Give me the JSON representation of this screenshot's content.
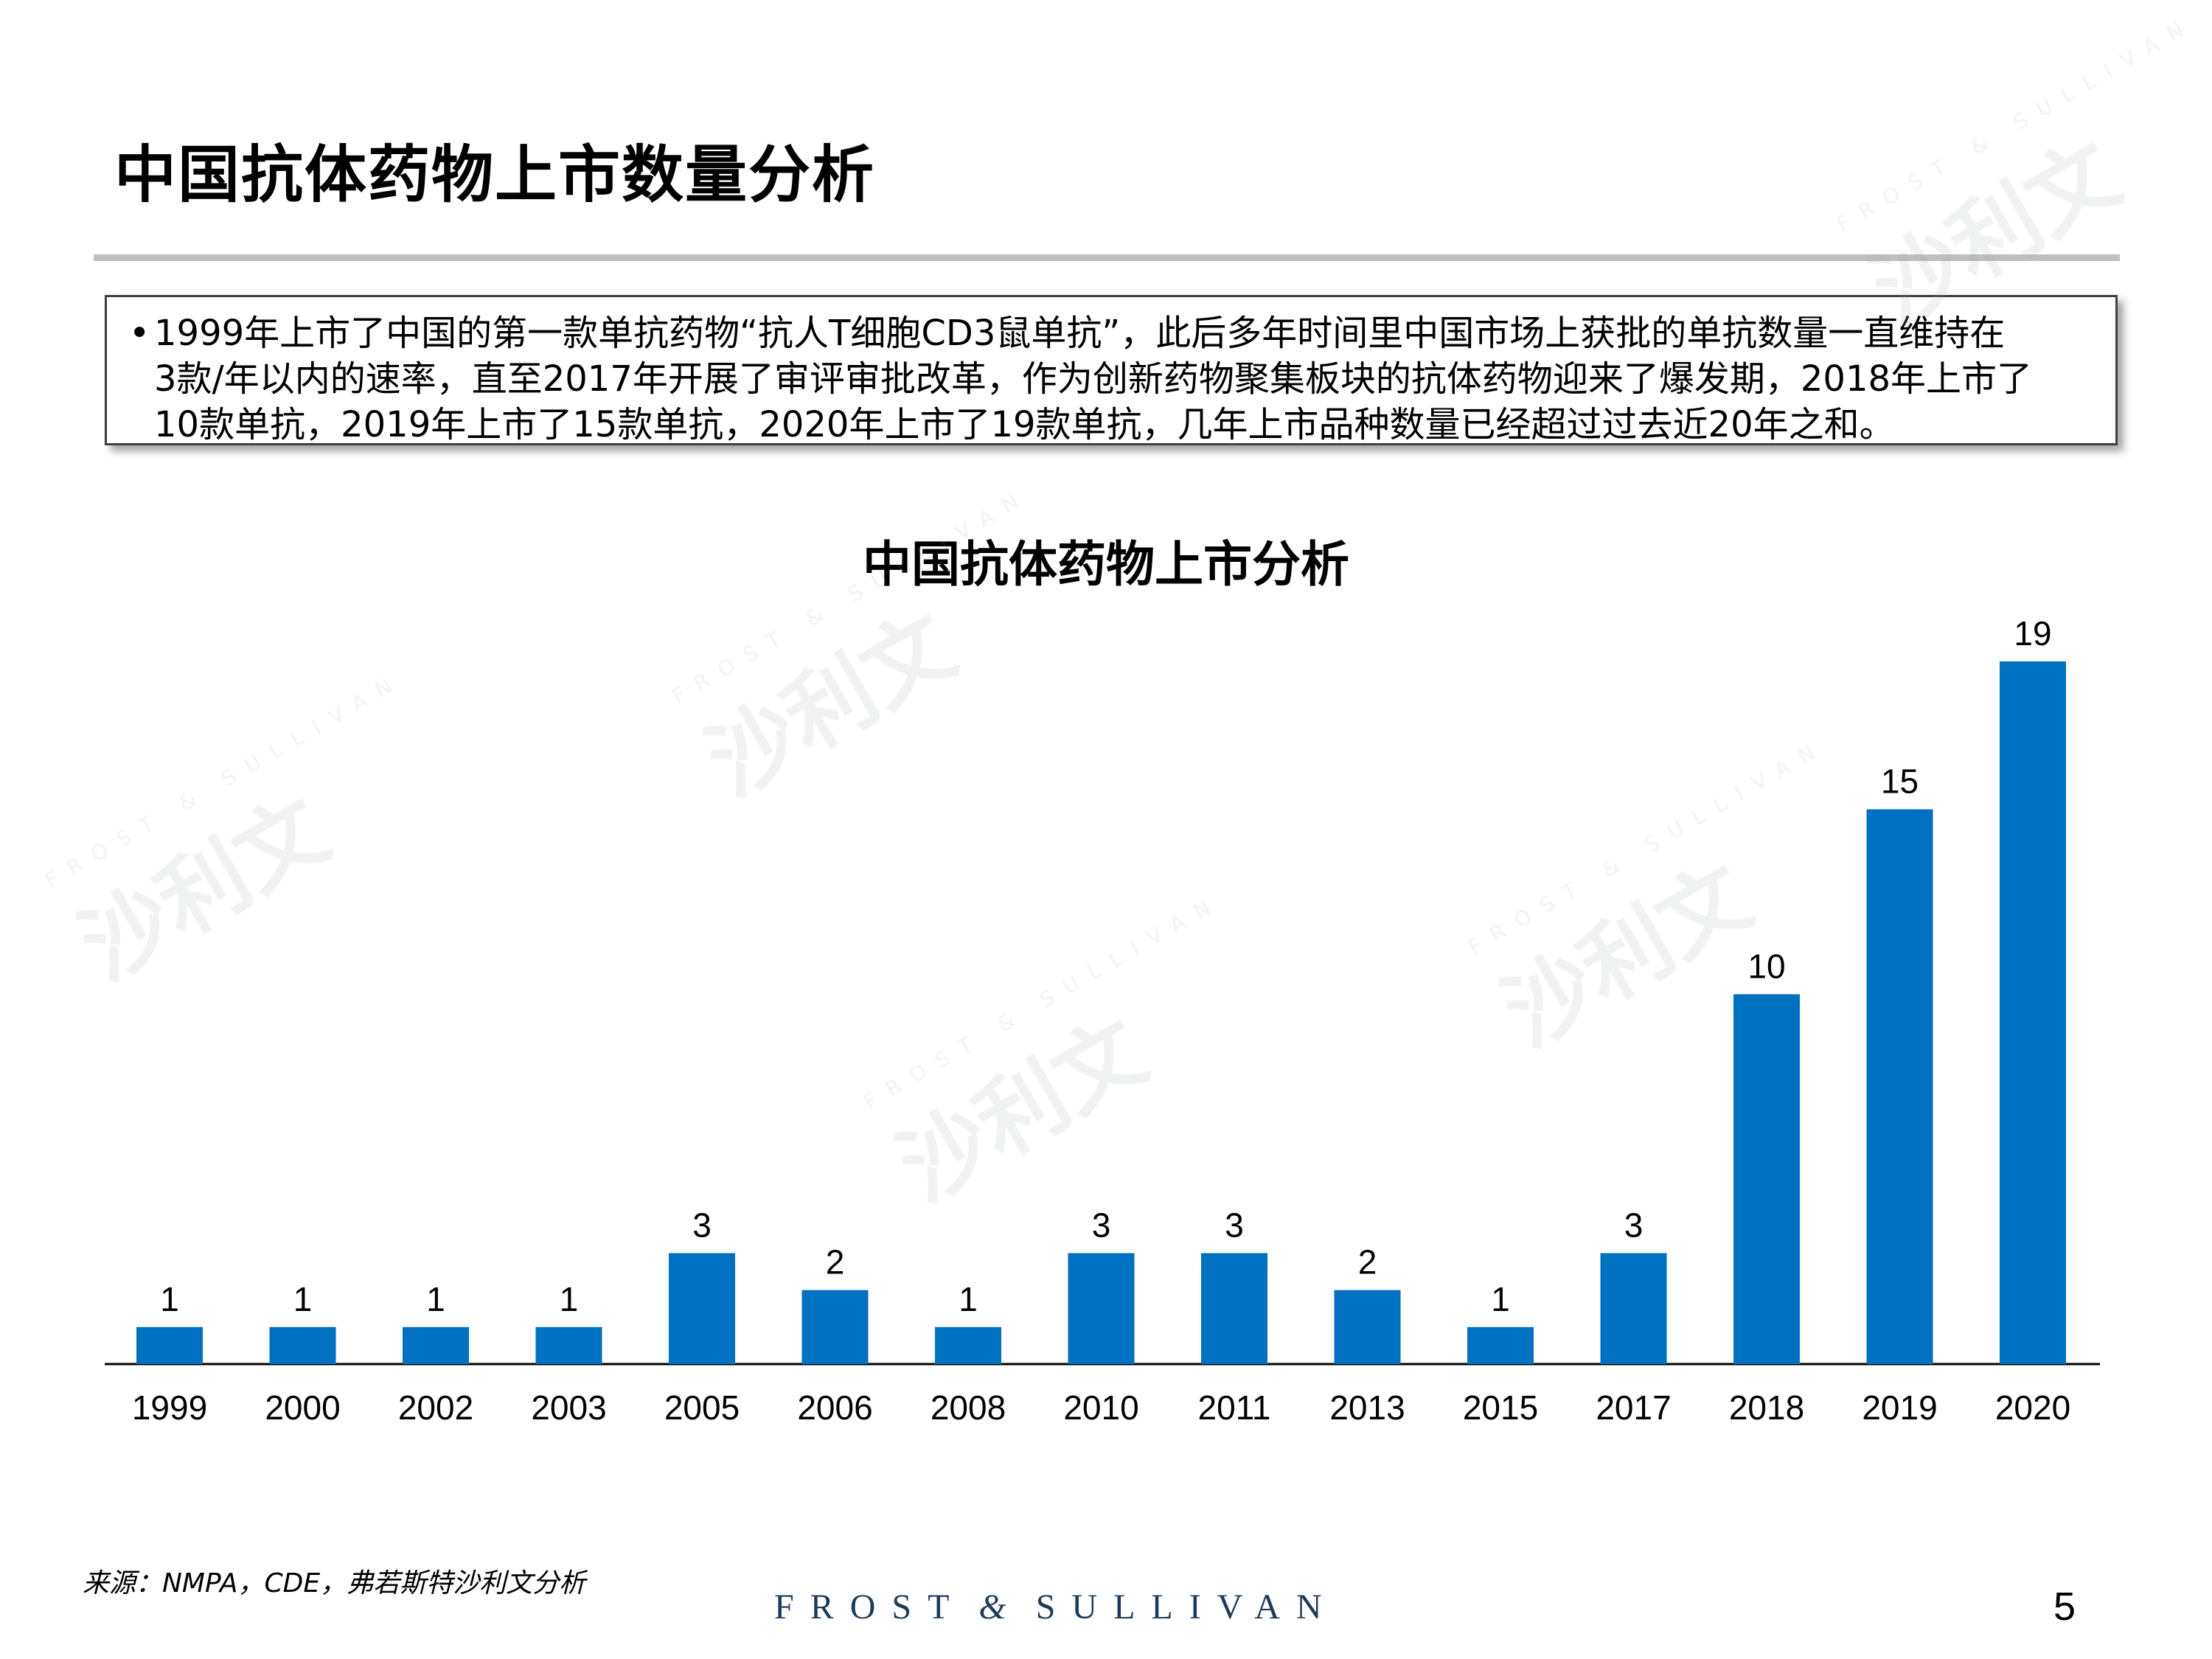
{
  "page_title": "中国抗体药物上市数量分析",
  "summary": {
    "lines": [
      "1999年上市了中国的第一款单抗药物“抗人T细胞CD3鼠单抗”，此后多年时间里中国市场上获批的单抗数量一直维持在",
      "3款/年以内的速率，直至2017年开展了审评审批改革，作为创新药物聚集板块的抗体药物迎来了爆发期，2018年上市了",
      "10款单抗，2019年上市了15款单抗，2020年上市了19款单抗，几年上市品种数量已经超过过去近20年之和。"
    ]
  },
  "chart_data": {
    "type": "bar",
    "title": "中国抗体药物上市分析",
    "categories": [
      "1999",
      "2000",
      "2002",
      "2003",
      "2005",
      "2006",
      "2008",
      "2010",
      "2011",
      "2013",
      "2015",
      "2017",
      "2018",
      "2019",
      "2020"
    ],
    "values": [
      1,
      1,
      1,
      1,
      3,
      2,
      1,
      3,
      3,
      2,
      1,
      3,
      10,
      15,
      19
    ],
    "ylim": [
      0,
      19
    ],
    "grid": false,
    "bar_color": "#0070c0",
    "xlabel": "",
    "ylabel": ""
  },
  "source": "来源：NMPA，CDE，弗若斯特沙利文分析",
  "logo": {
    "left": "FROST",
    "amp": "&",
    "right": "SULLIVAN"
  },
  "watermark": {
    "cn": "沙利文",
    "en": "FROST & SULLIVAN"
  },
  "page_number": "5"
}
